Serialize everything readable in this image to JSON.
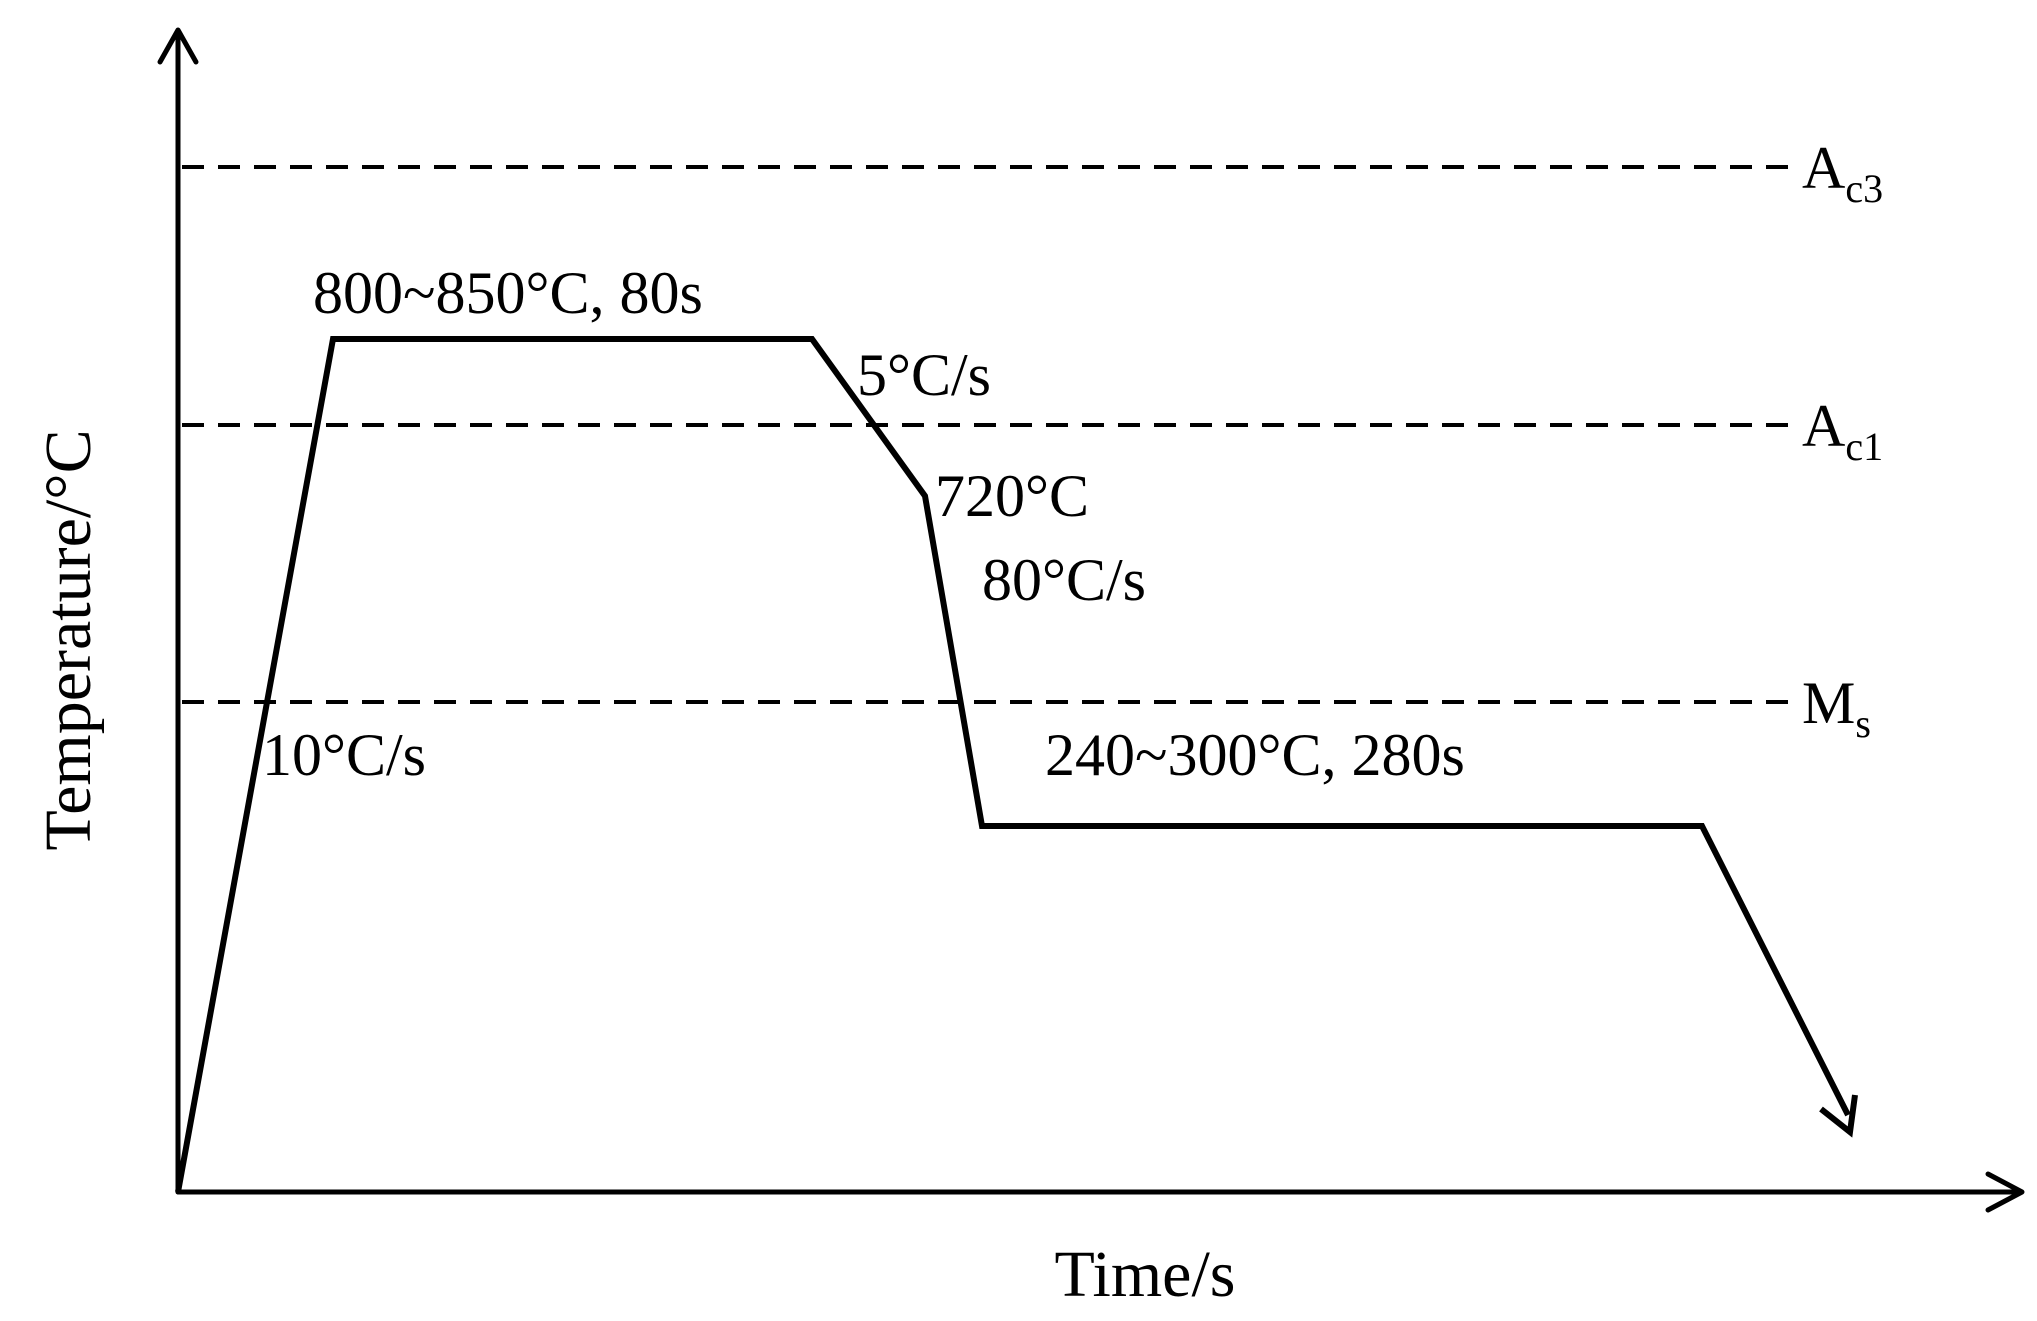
{
  "axes": {
    "x_label": "Time/s",
    "y_label": "Temperature/°C"
  },
  "critical_lines": [
    {
      "id": "ac3",
      "main": "A",
      "sub": "c3"
    },
    {
      "id": "ac1",
      "main": "A",
      "sub": "c1"
    },
    {
      "id": "ms",
      "main": "M",
      "sub": "s"
    }
  ],
  "annotations": {
    "heating_rate": "10°C/s",
    "austenitize": "800~850°C, 80s",
    "slow_cool_rate": "5°C/s",
    "intermediate_temp": "720°C",
    "fast_cool_rate": "80°C/s",
    "partition": "240~300°C, 280s"
  },
  "colors": {
    "line": "#000000",
    "background": "#ffffff"
  }
}
